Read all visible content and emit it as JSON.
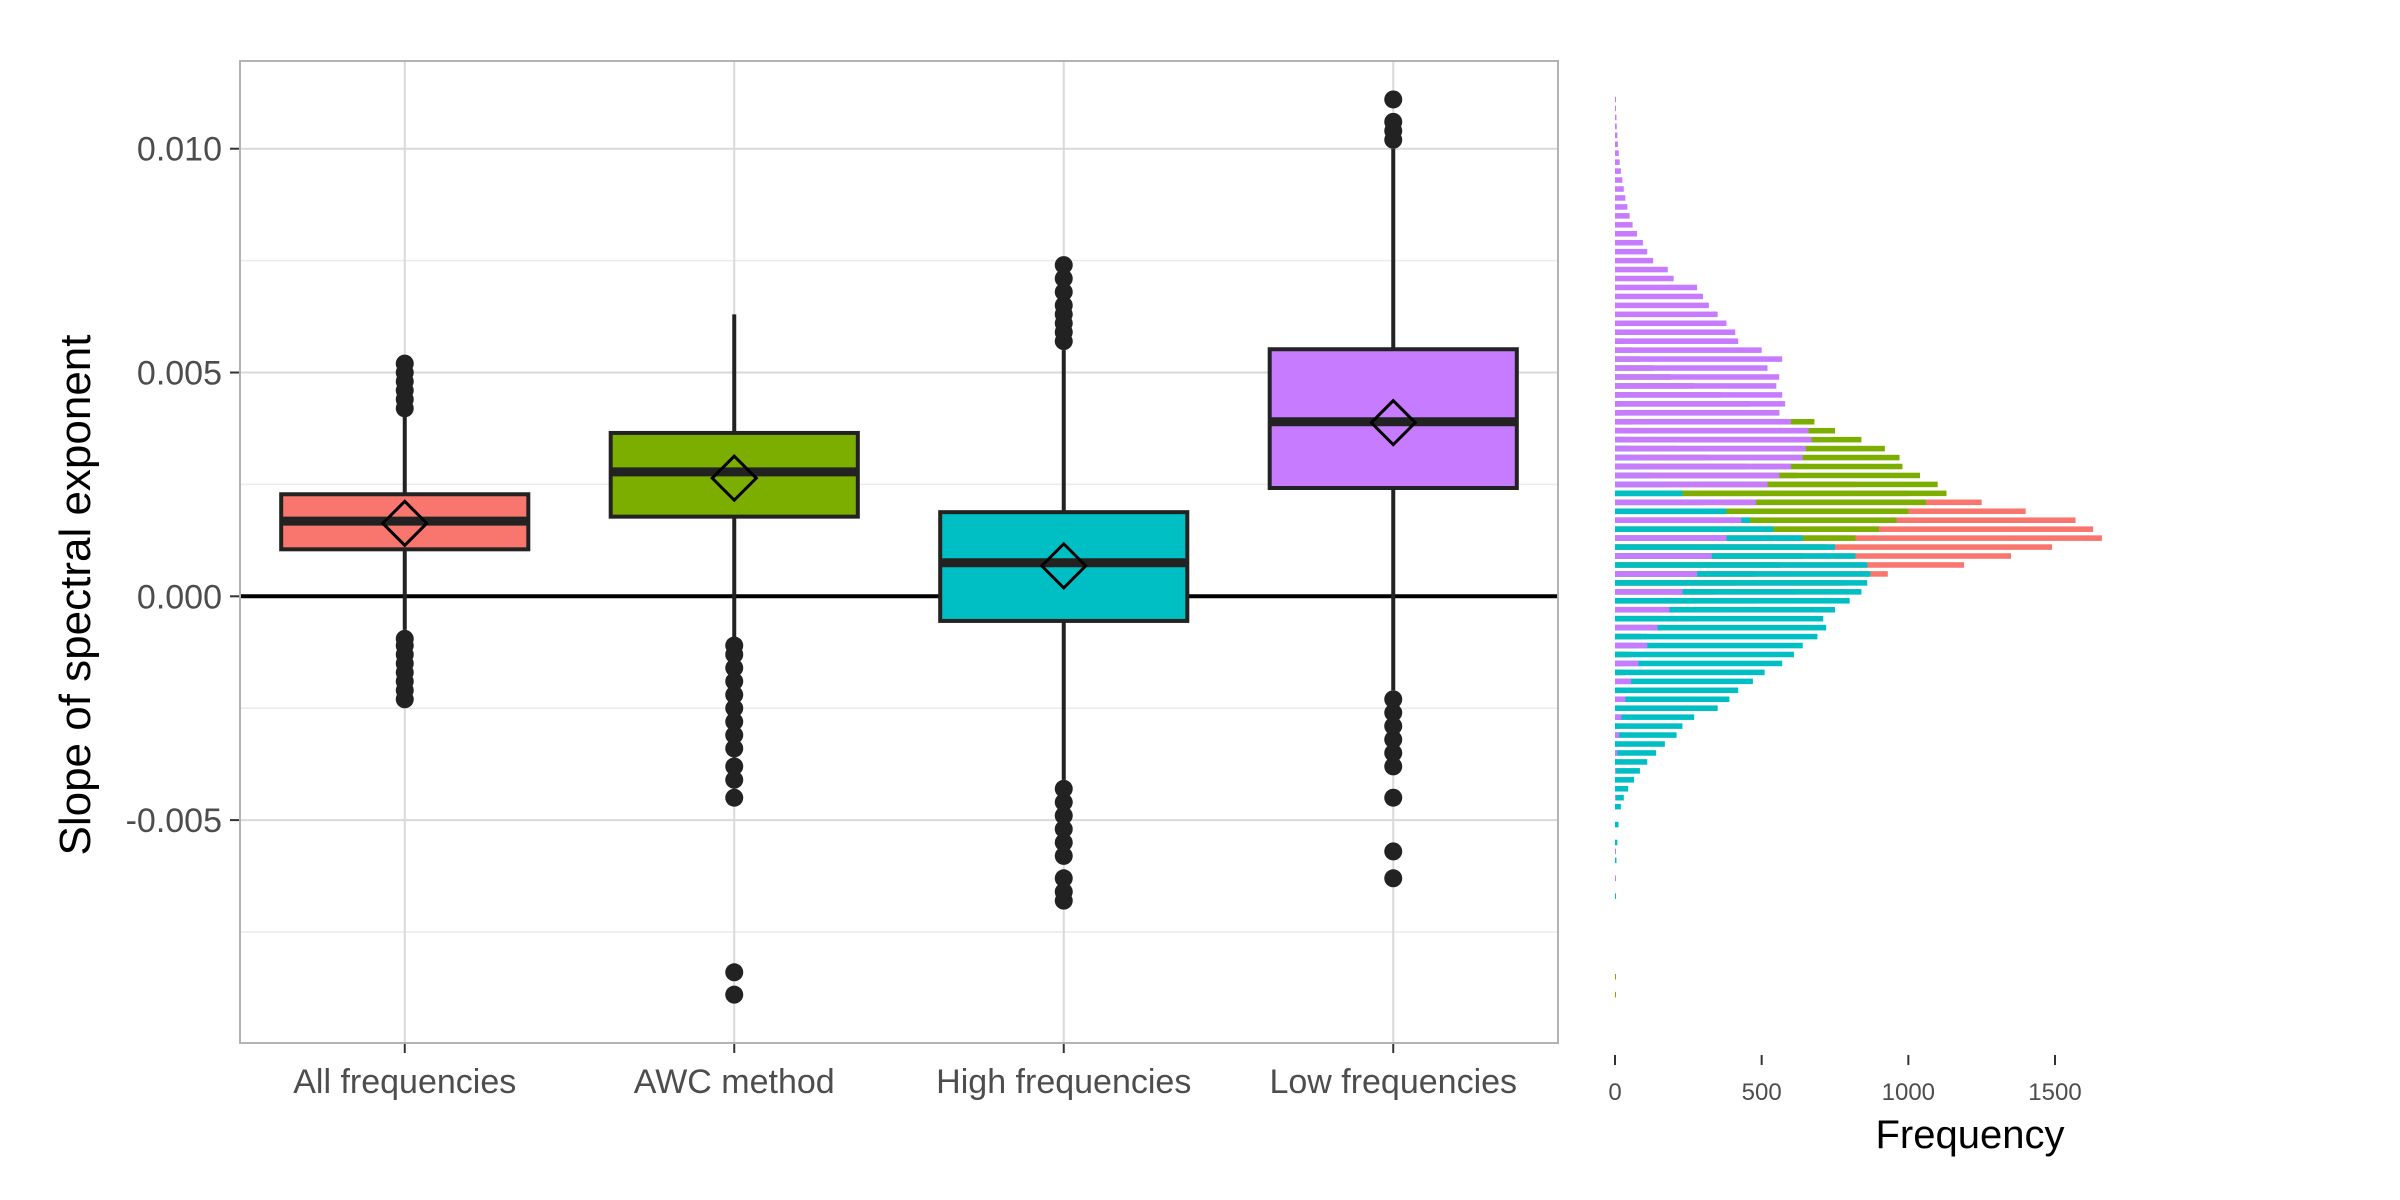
{
  "chart_data": [
    {
      "type": "box",
      "title": "",
      "xlabel": "",
      "ylabel": "Slope of spectral exponent",
      "ylim": [
        -0.00998,
        0.01196
      ],
      "ytick_values": [
        -0.005,
        0.0,
        0.005,
        0.01
      ],
      "ytick_labels": [
        "-0.005",
        "0.000",
        "0.005",
        "0.010"
      ],
      "y_minor_gridlines": [
        -0.0075,
        -0.0025,
        0.0025,
        0.0075
      ],
      "grid": true,
      "reference_line_y": 0.0,
      "categories": [
        "All frequencies",
        "AWC method",
        "High frequencies",
        "Low frequencies"
      ],
      "colors": [
        "#F8766D",
        "#7CAE00",
        "#00BFC4",
        "#C77CFF"
      ],
      "boxes": [
        {
          "category": "All frequencies",
          "q1": 0.00105,
          "median": 0.00168,
          "q3": 0.00228,
          "whisker_low": -0.00075,
          "whisker_high": 0.0041,
          "mean": 0.00163,
          "outliers": [
            -0.0023,
            -0.0021,
            -0.0019,
            -0.0017,
            -0.0015,
            -0.0013,
            -0.0011,
            -0.00095,
            0.0042,
            0.0044,
            0.0046,
            0.0048,
            0.005,
            0.0052
          ]
        },
        {
          "category": "AWC method",
          "q1": 0.00178,
          "median": 0.00278,
          "q3": 0.00365,
          "whisker_low": -0.00095,
          "whisker_high": 0.0063,
          "mean": 0.00264,
          "outliers": [
            -0.0089,
            -0.0084,
            -0.0045,
            -0.0041,
            -0.0038,
            -0.0034,
            -0.0031,
            -0.0028,
            -0.0025,
            -0.0022,
            -0.0019,
            -0.0016,
            -0.0013,
            -0.0011
          ]
        },
        {
          "category": "High frequencies",
          "q1": -0.00055,
          "median": 0.00075,
          "q3": 0.00188,
          "whisker_low": -0.0041,
          "whisker_high": 0.0055,
          "mean": 0.00068,
          "outliers": [
            -0.0068,
            -0.0066,
            -0.0063,
            -0.0058,
            -0.0055,
            -0.0052,
            -0.0049,
            -0.0046,
            -0.0043,
            0.0057,
            0.0059,
            0.0061,
            0.0063,
            0.0065,
            0.0068,
            0.0071,
            0.0074
          ]
        },
        {
          "category": "Low frequencies",
          "q1": 0.00242,
          "median": 0.0039,
          "q3": 0.00552,
          "whisker_low": -0.0021,
          "whisker_high": 0.01,
          "mean": 0.00388,
          "outliers": [
            -0.0063,
            -0.0057,
            -0.0045,
            -0.0038,
            -0.0035,
            -0.0032,
            -0.0029,
            -0.0026,
            -0.0023,
            0.0102,
            0.0104,
            0.0106,
            0.0111
          ]
        }
      ]
    },
    {
      "type": "histogram",
      "orientation": "horizontal",
      "title": "",
      "xlabel": "Frequency",
      "ylabel": "",
      "xlim": [
        0,
        1700
      ],
      "ylim": [
        -0.00998,
        0.01196
      ],
      "xtick_values": [
        0,
        500,
        1000,
        1500
      ],
      "xtick_labels": [
        "0",
        "500",
        "1000",
        "1500"
      ],
      "bin_width": 0.0002,
      "series": [
        {
          "color": "#F8766D",
          "centers": [
            -0.0023,
            -0.0021,
            -0.0019,
            -0.0017,
            -0.0015,
            -0.0013,
            -0.0011,
            -0.0009,
            -0.0007,
            -0.0005,
            -0.0003,
            -0.0001,
            0.0001,
            0.0003,
            0.0005,
            0.0007,
            0.0009,
            0.0011,
            0.0013,
            0.0015,
            0.0017,
            0.0019,
            0.0021,
            0.0023,
            0.0025,
            0.0027,
            0.0029,
            0.0031,
            0.0033,
            0.0035,
            0.0037,
            0.0039,
            0.0041,
            0.0043,
            0.0045,
            0.0047,
            0.0049,
            0.0051
          ],
          "counts": [
            3,
            5,
            8,
            15,
            25,
            40,
            70,
            110,
            170,
            260,
            360,
            480,
            620,
            780,
            930,
            1190,
            1350,
            1490,
            1660,
            1630,
            1570,
            1400,
            1250,
            1000,
            820,
            620,
            450,
            320,
            210,
            140,
            90,
            55,
            32,
            18,
            10,
            6,
            3,
            2
          ]
        },
        {
          "color": "#7CAE00",
          "centers": [
            -0.0089,
            -0.0085,
            -0.0045,
            -0.0041,
            -0.0037,
            -0.0033,
            -0.0029,
            -0.0025,
            -0.0021,
            -0.0017,
            -0.0013,
            -0.0009,
            -0.0007,
            -0.0005,
            -0.0003,
            -0.0001,
            0.0001,
            0.0003,
            0.0005,
            0.0007,
            0.0009,
            0.0011,
            0.0013,
            0.0015,
            0.0017,
            0.0019,
            0.0021,
            0.0023,
            0.0025,
            0.0027,
            0.0029,
            0.0031,
            0.0033,
            0.0035,
            0.0037,
            0.0039,
            0.0041,
            0.0043,
            0.0045,
            0.0047,
            0.0049,
            0.0051,
            0.0053,
            0.0055,
            0.0057,
            0.0059,
            0.0061,
            0.0063
          ],
          "counts": [
            1,
            1,
            2,
            3,
            4,
            6,
            9,
            14,
            22,
            35,
            55,
            90,
            120,
            160,
            210,
            270,
            340,
            410,
            480,
            560,
            640,
            720,
            820,
            900,
            960,
            1000,
            1060,
            1130,
            1100,
            1040,
            980,
            970,
            920,
            840,
            750,
            680,
            560,
            460,
            360,
            270,
            190,
            130,
            85,
            55,
            32,
            18,
            9,
            4
          ]
        },
        {
          "color": "#00BFC4",
          "centers": [
            -0.0067,
            -0.0063,
            -0.0059,
            -0.0055,
            -0.0051,
            -0.0047,
            -0.0045,
            -0.0043,
            -0.0041,
            -0.0039,
            -0.0037,
            -0.0035,
            -0.0033,
            -0.0031,
            -0.0029,
            -0.0027,
            -0.0025,
            -0.0023,
            -0.0021,
            -0.0019,
            -0.0017,
            -0.0015,
            -0.0013,
            -0.0011,
            -0.0009,
            -0.0007,
            -0.0005,
            -0.0003,
            -0.0001,
            0.0001,
            0.0003,
            0.0005,
            0.0007,
            0.0009,
            0.0011,
            0.0013,
            0.0015,
            0.0017,
            0.0019,
            0.0021,
            0.0023,
            0.0025,
            0.0027,
            0.0029,
            0.0031,
            0.0033,
            0.0035,
            0.0037,
            0.0039,
            0.0041,
            0.0043,
            0.0045,
            0.0047,
            0.0049,
            0.0051,
            0.0053,
            0.0055,
            0.0057,
            0.0061,
            0.0065,
            0.0069,
            0.0073
          ],
          "counts": [
            2,
            3,
            5,
            8,
            12,
            20,
            30,
            45,
            65,
            85,
            110,
            140,
            170,
            210,
            230,
            270,
            350,
            390,
            420,
            470,
            510,
            570,
            610,
            640,
            690,
            720,
            710,
            750,
            800,
            840,
            860,
            870,
            860,
            820,
            750,
            640,
            540,
            460,
            380,
            300,
            230,
            170,
            125,
            90,
            65,
            45,
            32,
            24,
            18,
            13,
            10,
            8,
            6,
            5,
            4,
            3,
            3,
            2,
            2,
            2,
            1,
            1
          ]
        },
        {
          "color": "#C77CFF",
          "centers": [
            -0.0063,
            -0.0057,
            -0.0045,
            -0.0039,
            -0.0035,
            -0.0031,
            -0.0027,
            -0.0023,
            -0.0019,
            -0.0015,
            -0.0011,
            -0.0007,
            -0.0003,
            0.0001,
            0.0005,
            0.0009,
            0.0013,
            0.0017,
            0.0021,
            0.0025,
            0.0027,
            0.0029,
            0.0031,
            0.0033,
            0.0035,
            0.0037,
            0.0039,
            0.0041,
            0.0043,
            0.0045,
            0.0047,
            0.0049,
            0.0051,
            0.0053,
            0.0055,
            0.0057,
            0.0059,
            0.0061,
            0.0063,
            0.0065,
            0.0067,
            0.0069,
            0.0071,
            0.0073,
            0.0075,
            0.0077,
            0.0079,
            0.0081,
            0.0083,
            0.0085,
            0.0087,
            0.0089,
            0.0091,
            0.0093,
            0.0095,
            0.0097,
            0.0099,
            0.0101,
            0.0103,
            0.0105,
            0.0107,
            0.0109,
            0.0111
          ],
          "counts": [
            1,
            1,
            2,
            4,
            8,
            14,
            22,
            35,
            55,
            80,
            110,
            145,
            185,
            230,
            280,
            330,
            380,
            430,
            480,
            520,
            560,
            600,
            640,
            650,
            670,
            660,
            600,
            560,
            580,
            570,
            550,
            560,
            520,
            570,
            500,
            420,
            410,
            380,
            350,
            320,
            300,
            280,
            200,
            180,
            130,
            110,
            95,
            75,
            60,
            50,
            42,
            35,
            30,
            25,
            20,
            16,
            13,
            10,
            8,
            6,
            5,
            3,
            2
          ]
        }
      ]
    }
  ]
}
